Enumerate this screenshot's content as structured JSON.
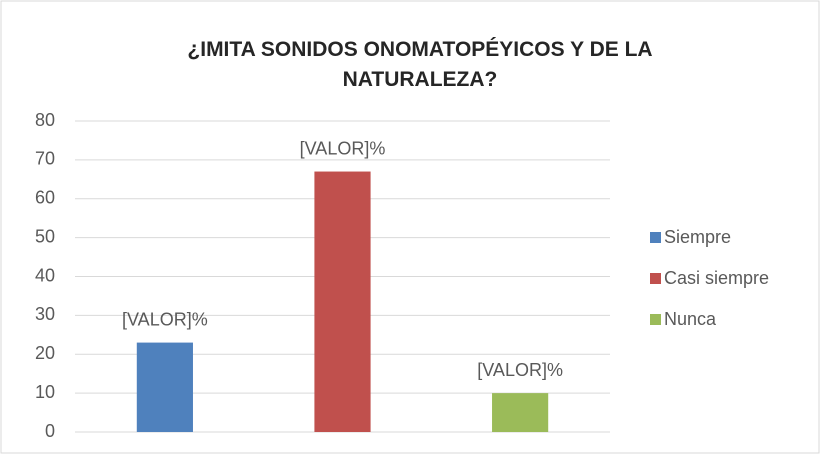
{
  "chart_data": {
    "type": "bar",
    "title": "¿IMITA SONIDOS ONOMATOPÉYICOS Y DE LA NATURALEZA?",
    "categories": [
      null
    ],
    "series": [
      {
        "name": "Siempre",
        "color": "#4f81bd",
        "values": [
          23
        ],
        "value_labels": [
          "[VALOR]%"
        ]
      },
      {
        "name": "Casi siempre",
        "color": "#c0504d",
        "values": [
          67
        ],
        "value_labels": [
          "[VALOR]%"
        ]
      },
      {
        "name": "Nunca",
        "color": "#9bbb59",
        "values": [
          10
        ],
        "value_labels": [
          "[VALOR]%"
        ]
      }
    ],
    "ylim": [
      0,
      80
    ],
    "yticks": [
      0,
      10,
      20,
      30,
      40,
      50,
      60,
      70,
      80
    ],
    "grid": true,
    "legend": "right"
  }
}
